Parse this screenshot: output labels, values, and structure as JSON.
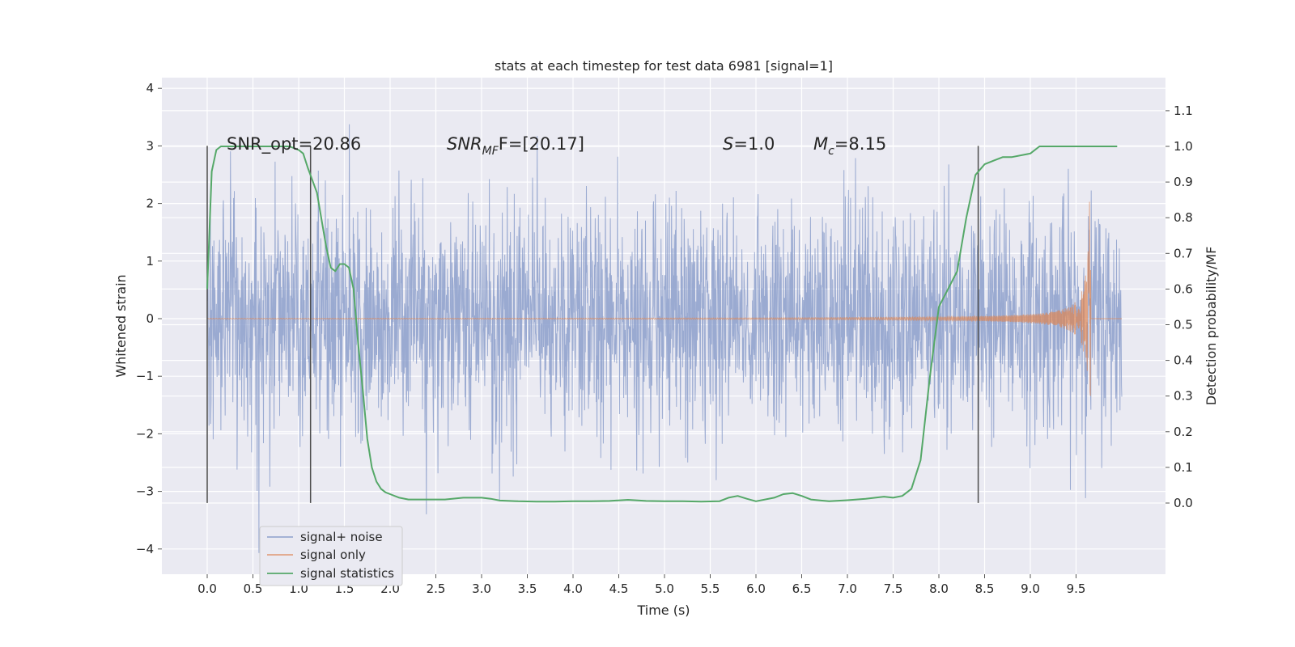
{
  "chart_data": {
    "type": "line",
    "title": "stats at each timestep for test data 6981 [signal=1]",
    "xlabel": "Time (s)",
    "ylabel_left": "Whitened strain",
    "ylabel_right": "Detection probability/MF",
    "xlim": [
      -0.48,
      10.5
    ],
    "ylim_left": [
      -4.45,
      4.2
    ],
    "ylim_right": [
      -0.2,
      1.2
    ],
    "x_ticks": [
      "0.0",
      "0.5",
      "1.0",
      "1.5",
      "2.0",
      "2.5",
      "3.0",
      "3.5",
      "4.0",
      "4.5",
      "5.0",
      "5.5",
      "6.0",
      "6.5",
      "7.0",
      "7.5",
      "8.0",
      "8.5",
      "9.0",
      "9.5"
    ],
    "y_ticks_left": [
      "−4",
      "−3",
      "−2",
      "−1",
      "0",
      "1",
      "2",
      "3",
      "4"
    ],
    "y_ticks_right": [
      "0.0",
      "0.1",
      "0.2",
      "0.3",
      "0.4",
      "0.5",
      "0.6",
      "0.7",
      "0.8",
      "0.9",
      "1.0",
      "1.1"
    ],
    "grid": true,
    "legend_position": "lower-left",
    "series": [
      {
        "name": "signal+ noise",
        "color": "#8c9fcb",
        "axis": "left",
        "time_range": [
          0,
          10.0
        ],
        "approx_amplitude": 1.6
      },
      {
        "name": "signal only",
        "color": "#dd8452",
        "axis": "left",
        "time_range": [
          0,
          9.65
        ],
        "chirp_end_amplitude": 2.4
      },
      {
        "name": "signal statistics",
        "color": "#55a868",
        "axis": "right",
        "x": [
          0.0,
          0.05,
          0.1,
          0.15,
          0.2,
          0.3,
          0.5,
          0.7,
          0.9,
          1.0,
          1.05,
          1.1,
          1.2,
          1.3,
          1.35,
          1.4,
          1.45,
          1.5,
          1.55,
          1.6,
          1.65,
          1.7,
          1.75,
          1.8,
          1.85,
          1.9,
          1.95,
          2.0,
          2.1,
          2.2,
          2.4,
          2.6,
          2.8,
          3.0,
          3.1,
          3.2,
          3.4,
          3.6,
          3.8,
          4.0,
          4.2,
          4.4,
          4.6,
          4.8,
          5.0,
          5.2,
          5.4,
          5.6,
          5.7,
          5.8,
          5.9,
          6.0,
          6.2,
          6.3,
          6.4,
          6.5,
          6.6,
          6.8,
          7.0,
          7.2,
          7.4,
          7.5,
          7.6,
          7.7,
          7.8,
          7.9,
          8.0,
          8.1,
          8.2,
          8.3,
          8.4,
          8.5,
          8.6,
          8.7,
          8.8,
          9.0,
          9.1,
          9.2,
          9.3,
          9.5,
          9.7,
          9.9,
          9.95
        ],
        "y": [
          0.6,
          0.93,
          0.99,
          1.0,
          1.0,
          1.0,
          1.0,
          1.0,
          1.0,
          0.99,
          0.98,
          0.94,
          0.87,
          0.72,
          0.66,
          0.65,
          0.67,
          0.67,
          0.66,
          0.6,
          0.45,
          0.32,
          0.18,
          0.1,
          0.06,
          0.04,
          0.03,
          0.025,
          0.015,
          0.01,
          0.01,
          0.01,
          0.015,
          0.015,
          0.012,
          0.007,
          0.005,
          0.004,
          0.004,
          0.005,
          0.005,
          0.006,
          0.009,
          0.006,
          0.005,
          0.005,
          0.004,
          0.005,
          0.015,
          0.02,
          0.012,
          0.005,
          0.015,
          0.025,
          0.028,
          0.02,
          0.01,
          0.005,
          0.008,
          0.012,
          0.018,
          0.015,
          0.02,
          0.04,
          0.12,
          0.35,
          0.55,
          0.6,
          0.65,
          0.8,
          0.92,
          0.95,
          0.96,
          0.97,
          0.97,
          0.98,
          1.0,
          1.0,
          1.0,
          1.0,
          1.0,
          1.0,
          1.0
        ]
      }
    ],
    "vertical_lines": [
      0.0,
      1.13,
      8.43
    ],
    "vertical_lines_range_left": [
      -3.2,
      3.0
    ],
    "annotations": [
      {
        "text": "SNR_opt=20.86",
        "x": 0.2
      },
      {
        "text_main": "SNR",
        "text_sub": "MF",
        "text_rest": "F=[20.17]",
        "x": 2.6
      },
      {
        "text_main": "S",
        "text_rest": "=1.0",
        "x": 5.6
      },
      {
        "text_main": "M",
        "text_sub": "c",
        "text_rest": "=8.15",
        "x": 6.6
      }
    ]
  }
}
